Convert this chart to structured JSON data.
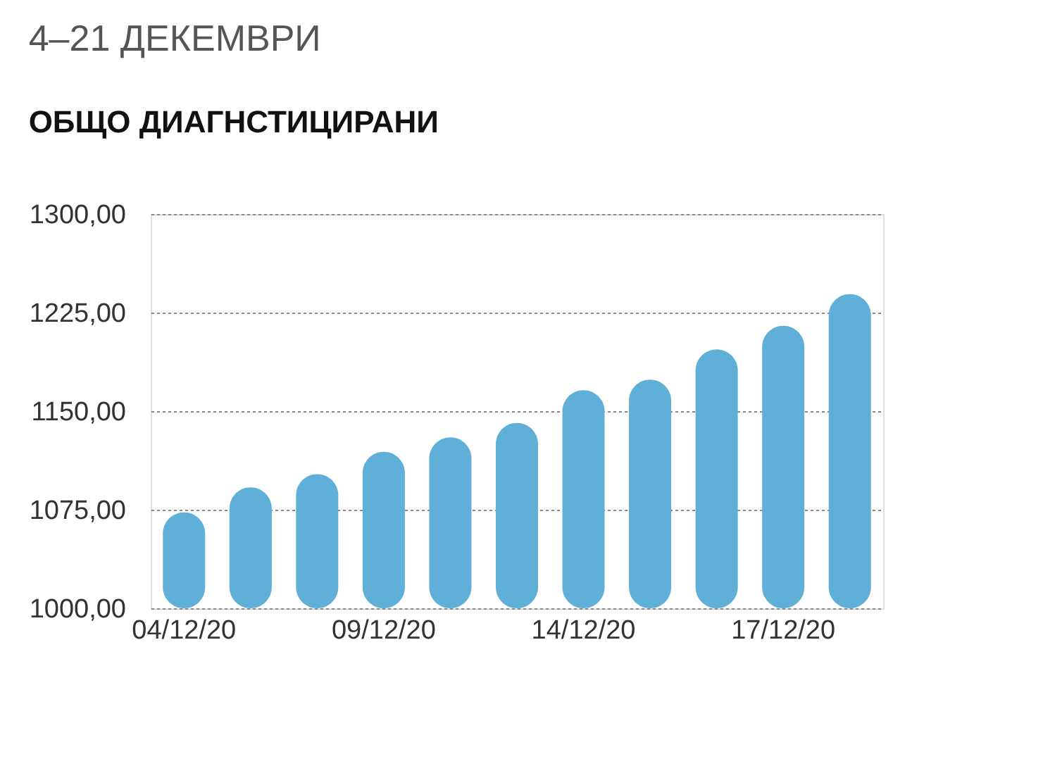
{
  "chart_data": {
    "type": "bar",
    "title": "4–21 ДЕКЕМВРИ",
    "subtitle": "ОБЩО ДИАГНСТИЦИРАНИ",
    "categories": [
      "04/12/20",
      null,
      null,
      "09/12/20",
      null,
      null,
      "14/12/20",
      null,
      null,
      "17/12/20",
      null
    ],
    "values": [
      1073,
      1092,
      1102,
      1119,
      1130,
      1141,
      1166,
      1174,
      1197,
      1215,
      1239
    ],
    "color": "#5fafd8",
    "ylim": [
      1000,
      1300
    ],
    "yticks": [
      {
        "value": 1000,
        "label": "1000,00"
      },
      {
        "value": 1075,
        "label": "1075,00"
      },
      {
        "value": 1150,
        "label": "1150,00"
      },
      {
        "value": 1225,
        "label": "1225,00"
      },
      {
        "value": 1300,
        "label": "1300,00"
      }
    ],
    "grid": "y"
  }
}
